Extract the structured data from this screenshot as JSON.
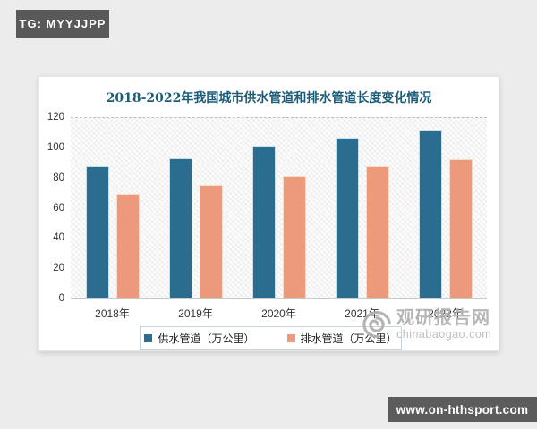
{
  "badges": {
    "tg": "TG: MYYJJPP",
    "site_url": "www.on-hthsport.com"
  },
  "watermark": {
    "name": "观研报告网",
    "domain": "chinabaogao.com",
    "logo": "eye-swirl-logo",
    "color": "#b2b2b2"
  },
  "colors": {
    "page_background": "#ececec",
    "card_background": "#ffffff",
    "title_text": "#1d5c78",
    "axis_text": "#333333",
    "badge_background": "#595959",
    "supply_bar": "#2b6d8e",
    "drainage_bar": "#ec9a7b"
  },
  "chart_data": {
    "type": "bar",
    "title": "2018-2022年我国城市供水管道和排水管道长度变化情况",
    "categories": [
      "2018年",
      "2019年",
      "2020年",
      "2021年",
      "2022年"
    ],
    "series": [
      {
        "name": "供水管道（万公里）",
        "key": "supply",
        "color": "#2b6d8e",
        "values": [
          86.7,
          92.0,
          100.7,
          106.0,
          110.3
        ]
      },
      {
        "name": "排水管道（万公里）",
        "key": "drainage",
        "color": "#ec9a7b",
        "values": [
          68.4,
          74.4,
          80.3,
          87.2,
          91.4
        ]
      }
    ],
    "xlabel": "",
    "ylabel": "",
    "ylim": [
      0,
      120
    ],
    "yticks": [
      0,
      20,
      40,
      60,
      80,
      100,
      120
    ],
    "grid": "dashed gridline at y=120 only, hatched plot background",
    "legend_position": "bottom"
  }
}
